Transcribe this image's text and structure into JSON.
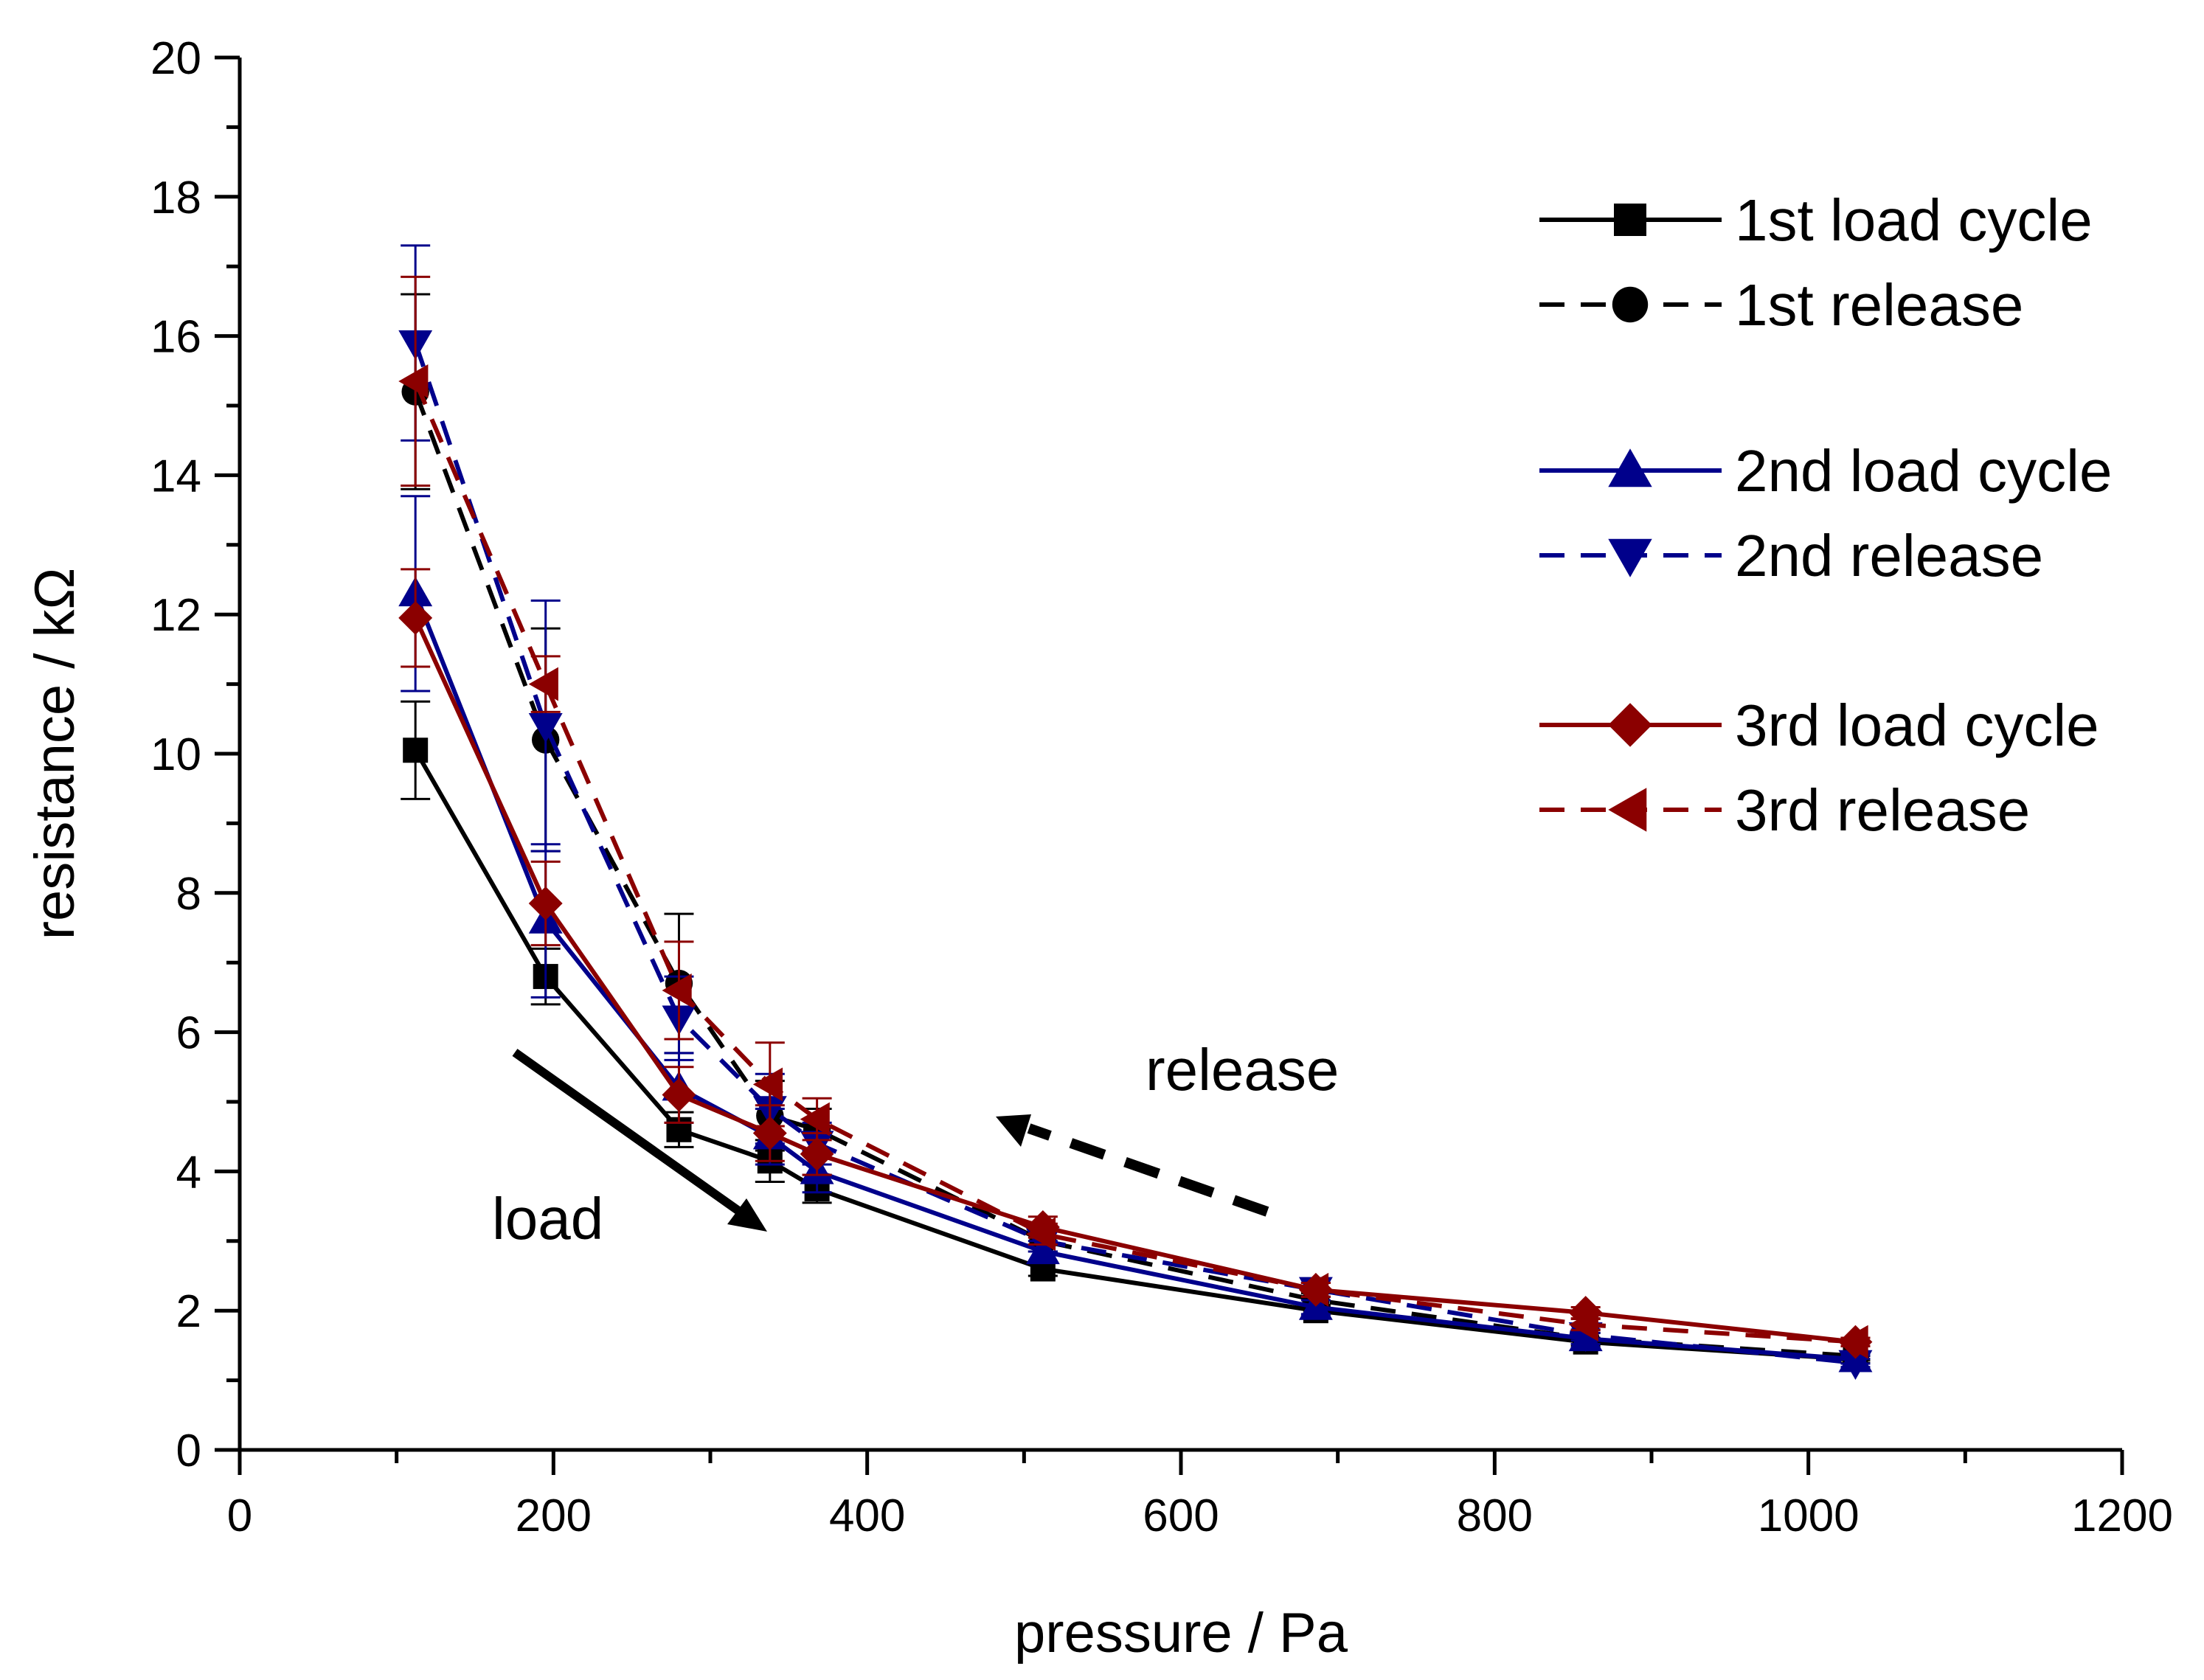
{
  "chart_data": {
    "type": "line",
    "title": "",
    "xlabel": "pressure / Pa",
    "ylabel": "resistance / kΩ",
    "xlim": [
      0,
      1200
    ],
    "ylim": [
      0,
      20
    ],
    "xticks": [
      0,
      200,
      400,
      600,
      800,
      1000,
      1200
    ],
    "yticks": [
      0,
      2,
      4,
      6,
      8,
      10,
      12,
      14,
      16,
      18,
      20
    ],
    "grid": false,
    "legend_position": "top-right",
    "x": [
      112,
      195,
      280,
      338,
      368,
      512,
      686,
      858,
      1030
    ],
    "series": [
      {
        "name": "1st load cycle",
        "color": "#000000",
        "dash": "solid",
        "marker": "square",
        "values": [
          10.05,
          6.8,
          4.6,
          4.15,
          3.75,
          2.6,
          2.0,
          1.55,
          1.3
        ],
        "errors": [
          0.7,
          0.4,
          0.25,
          0.3,
          0.2,
          0.1,
          0.08,
          0.06,
          0.05
        ]
      },
      {
        "name": "1st release",
        "color": "#000000",
        "dash": "dashed",
        "marker": "circle",
        "values": [
          15.2,
          10.2,
          6.7,
          4.8,
          4.6,
          3.0,
          2.15,
          1.6,
          1.35
        ],
        "errors": [
          1.4,
          1.6,
          1.0,
          0.5,
          0.3,
          0.15,
          0.1,
          0.08,
          0.06
        ]
      },
      {
        "name": "2nd load cycle",
        "color": "#00008b",
        "dash": "solid",
        "marker": "triangle-up",
        "values": [
          12.3,
          7.6,
          5.2,
          4.5,
          4.0,
          2.85,
          2.05,
          1.6,
          1.3
        ],
        "errors": [
          1.4,
          1.1,
          0.5,
          0.4,
          0.3,
          0.15,
          0.1,
          0.08,
          0.06
        ]
      },
      {
        "name": "2nd release",
        "color": "#00008b",
        "dash": "dashed",
        "marker": "triangle-down",
        "values": [
          15.9,
          10.4,
          6.2,
          4.9,
          4.4,
          3.0,
          2.3,
          1.65,
          1.25
        ],
        "errors": [
          1.4,
          1.8,
          0.6,
          0.5,
          0.3,
          0.15,
          0.1,
          0.08,
          0.06
        ]
      },
      {
        "name": "3rd load cycle",
        "color": "#8b0000",
        "dash": "solid",
        "marker": "diamond",
        "values": [
          11.95,
          7.85,
          5.1,
          4.55,
          4.25,
          3.2,
          2.3,
          1.97,
          1.55
        ],
        "errors": [
          0.7,
          0.6,
          0.4,
          0.4,
          0.3,
          0.15,
          0.1,
          0.08,
          0.06
        ]
      },
      {
        "name": "3rd release",
        "color": "#8b0000",
        "dash": "dashed",
        "marker": "triangle-left",
        "values": [
          15.35,
          11.0,
          6.6,
          5.25,
          4.75,
          3.1,
          2.3,
          1.8,
          1.55
        ],
        "errors": [
          1.5,
          0.4,
          0.7,
          0.6,
          0.3,
          0.15,
          0.1,
          0.08,
          0.06
        ]
      }
    ],
    "annotations": [
      {
        "text": "load",
        "arrow": "solid"
      },
      {
        "text": "release",
        "arrow": "dashed"
      }
    ]
  }
}
